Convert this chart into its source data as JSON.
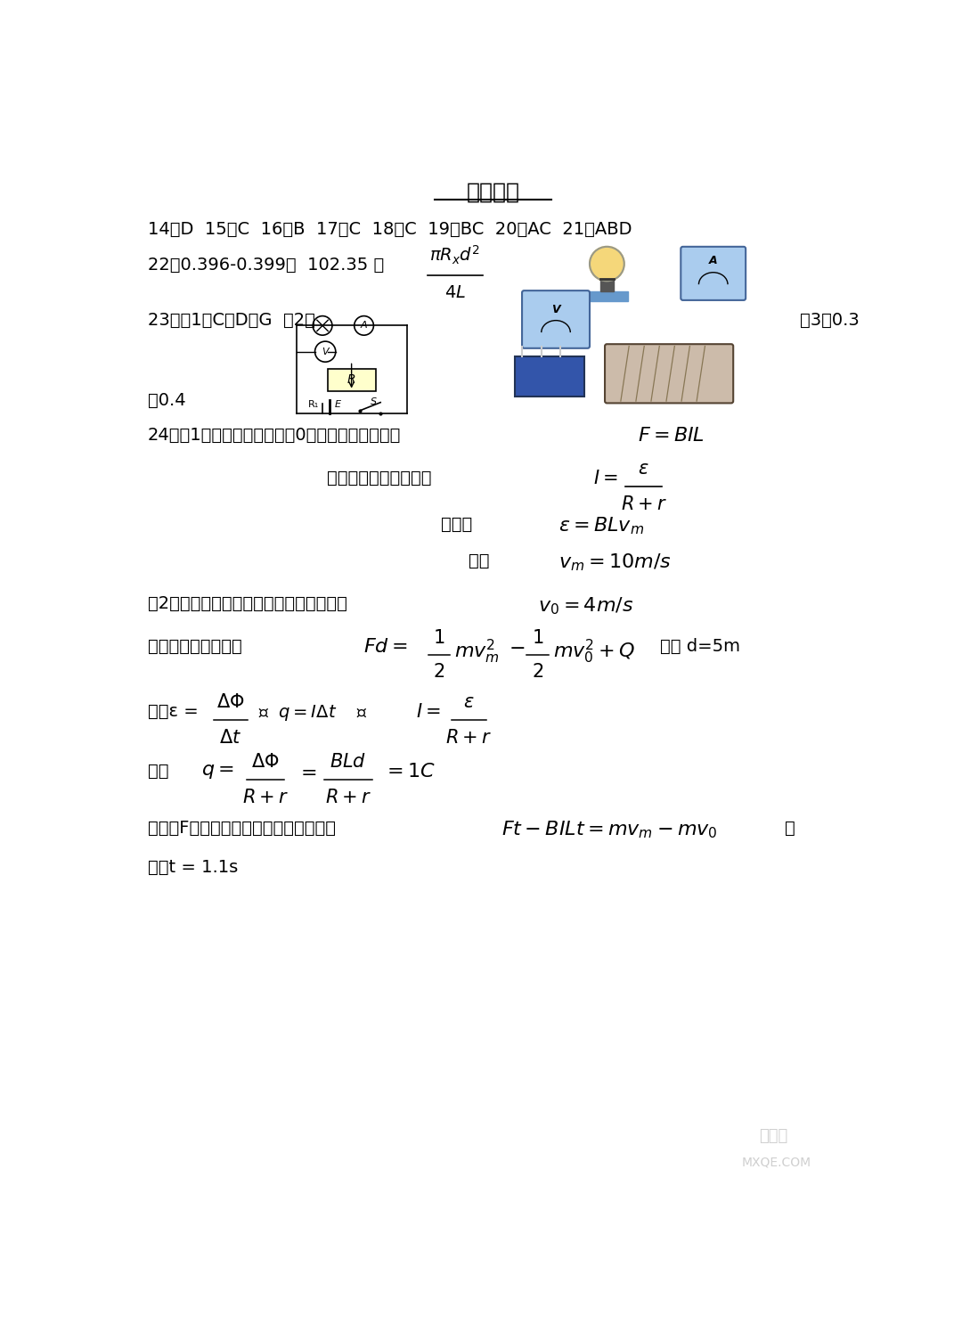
{
  "bg_color": "#ffffff",
  "title": "物理部分",
  "line1": "14、D  15、C  16、B  17、C  18、C  19、BC  20、AC  21、ABD",
  "line2_prefix": "22、0.396-0.399；  102.35 ；",
  "q23_prefix": "23、（1）C、D、G  （2）",
  "q23_suffix": "（3）0.3",
  "q23_last": "－0.4",
  "q24_line1": "24、（1）当导体棒加速度为0时，速度最大，则有",
  "q24_eq1": "$F = BIL$",
  "q24_text2": "根据闭合电路欧姆定律",
  "q24_text3": "电动势",
  "q24_eq3": "$\\varepsilon = BLv_m$",
  "q24_text4": "解得",
  "q24_eq4": "$v_m = 10m/s$",
  "q24_2_line1": "（2）由图可知，导体棒进入磁场时初速度",
  "q24_2_eq1": "$v_0 = 4m/s$",
  "q24_2_line2_prefix": "由系统能量守恒可知",
  "q24_2_suffix2": "解得 d=5m",
  "q24_5_line": "令拉力F的方向为正方向，根据动量定理",
  "q24_5_eq": "$Ft - BILt = mv_m - mv_0$",
  "q24_6": "解得t = 1.1s",
  "watermark1": "答案圈",
  "watermark2": "MXQE.COM"
}
